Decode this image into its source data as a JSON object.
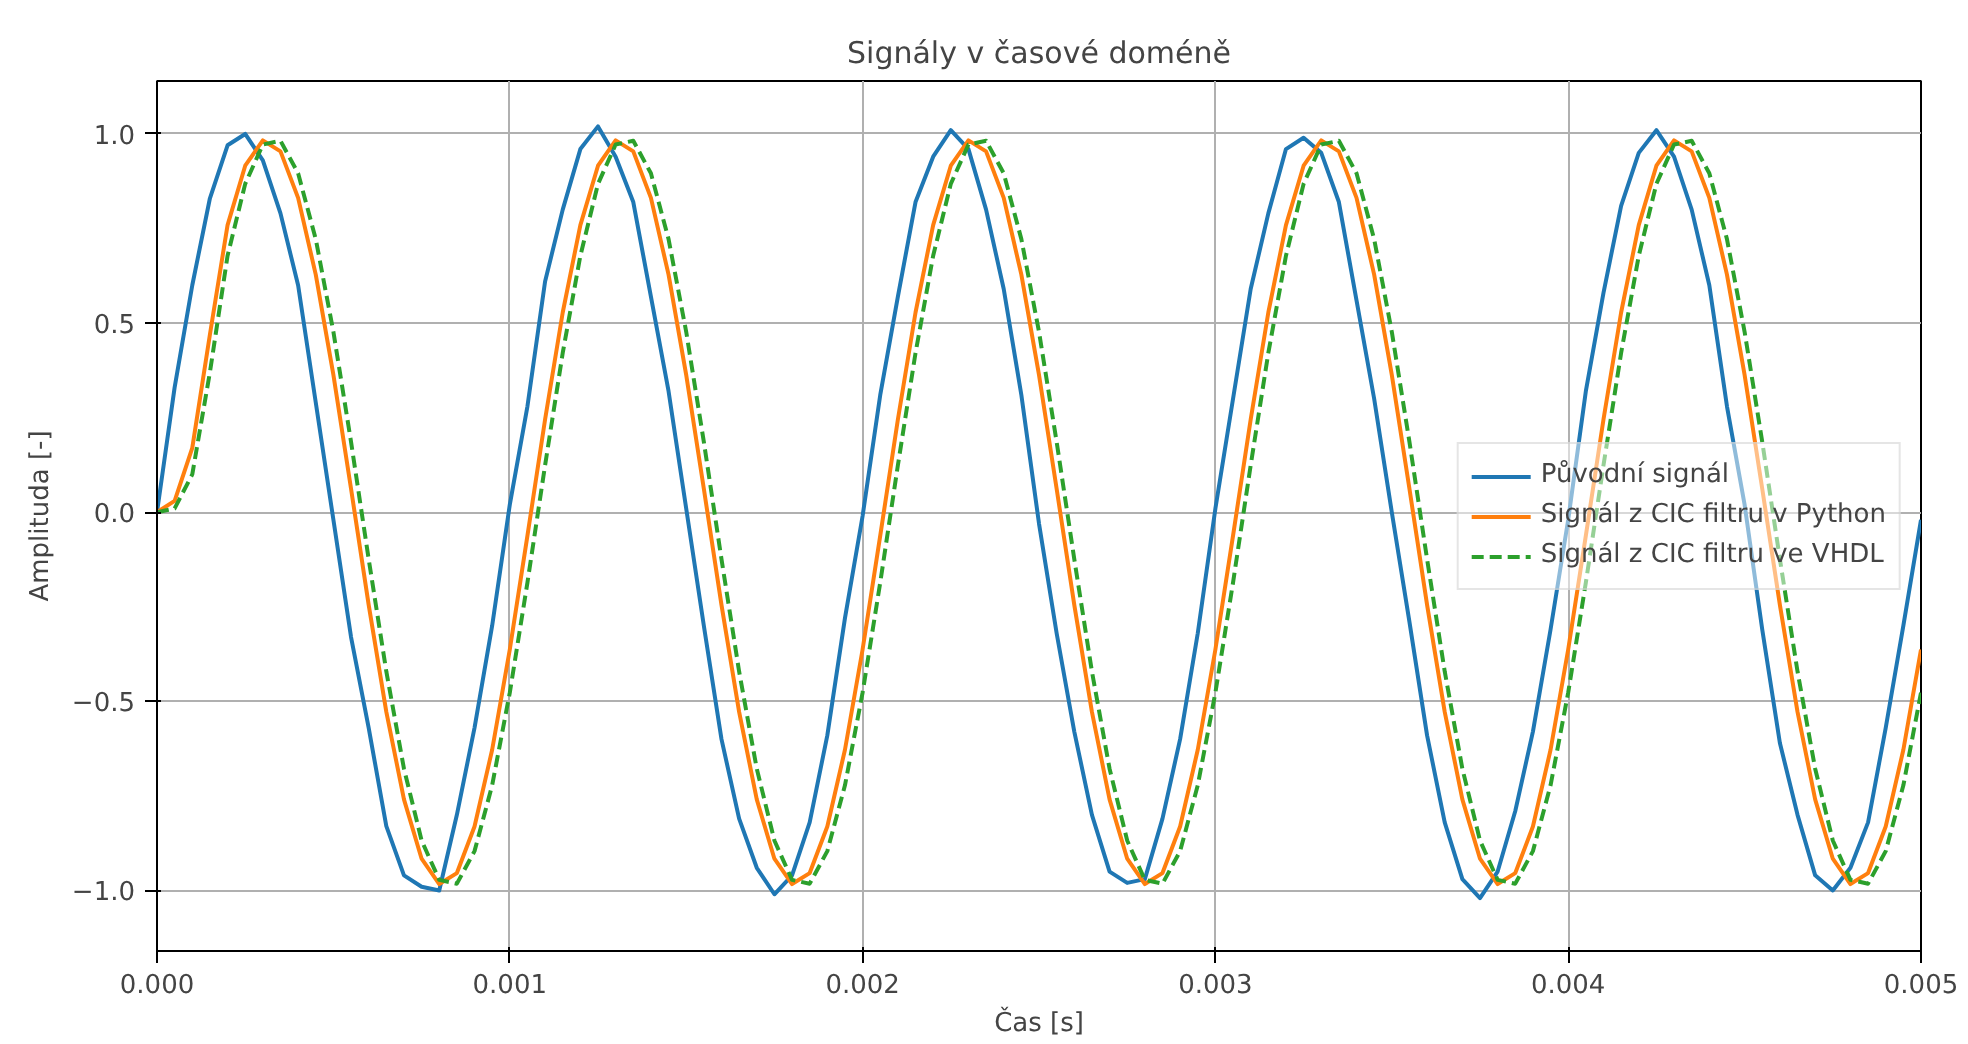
{
  "chart_data": {
    "type": "line",
    "title": "Signály v časové doméně",
    "xlabel": "Čas [s]",
    "ylabel": "Amplituda [-]",
    "x": [
      0,
      5e-05,
      0.0001,
      0.00015,
      0.0002,
      0.00025,
      0.0003,
      0.00035,
      0.0004,
      0.00045,
      0.0005,
      0.00055,
      0.0006,
      0.00065,
      0.0007,
      0.00075,
      0.0008,
      0.00085,
      0.0009,
      0.00095,
      0.001,
      0.00105,
      0.0011,
      0.00115,
      0.0012,
      0.00125,
      0.0013,
      0.00135,
      0.0014,
      0.00145,
      0.0015,
      0.00155,
      0.0016,
      0.00165,
      0.0017,
      0.00175,
      0.0018,
      0.00185,
      0.0019,
      0.00195,
      0.002,
      0.00205,
      0.0021,
      0.00215,
      0.0022,
      0.00225,
      0.0023,
      0.00235,
      0.0024,
      0.00245,
      0.0025,
      0.00255,
      0.0026,
      0.00265,
      0.0027,
      0.00275,
      0.0028,
      0.00285,
      0.0029,
      0.00295,
      0.003,
      0.00305,
      0.0031,
      0.00315,
      0.0032,
      0.00325,
      0.0033,
      0.00335,
      0.0034,
      0.00345,
      0.0035,
      0.00355,
      0.0036,
      0.00365,
      0.0037,
      0.00375,
      0.0038,
      0.00385,
      0.0039,
      0.00395,
      0.004,
      0.00405,
      0.0041,
      0.00415,
      0.0042,
      0.00425,
      0.0043,
      0.00435,
      0.0044,
      0.00445,
      0.0045,
      0.00455,
      0.0046,
      0.00465,
      0.0047,
      0.00475,
      0.0048,
      0.00485,
      0.0049,
      0.00495,
      0.005
    ],
    "series": [
      {
        "name": "Původní signál",
        "color": "#1f77b4",
        "values": [
          0,
          0.33,
          0.6,
          0.83,
          0.97,
          1.0,
          0.93,
          0.79,
          0.6,
          0.29,
          -0.02,
          -0.33,
          -0.57,
          -0.83,
          -0.96,
          -0.99,
          -1.0,
          -0.8,
          -0.57,
          -0.3,
          0.02,
          0.28,
          0.61,
          0.8,
          0.96,
          1.02,
          0.94,
          0.82,
          0.57,
          0.32,
          0.01,
          -0.3,
          -0.6,
          -0.81,
          -0.94,
          -1.01,
          -0.96,
          -0.82,
          -0.59,
          -0.28,
          -0.01,
          0.31,
          0.57,
          0.82,
          0.94,
          1.01,
          0.96,
          0.8,
          0.59,
          0.31,
          -0.03,
          -0.32,
          -0.58,
          -0.8,
          -0.95,
          -0.98,
          -0.97,
          -0.81,
          -0.6,
          -0.32,
          0.01,
          0.3,
          0.59,
          0.79,
          0.96,
          0.99,
          0.95,
          0.82,
          0.56,
          0.3,
          0,
          -0.29,
          -0.59,
          -0.82,
          -0.97,
          -1.02,
          -0.95,
          -0.79,
          -0.58,
          -0.31,
          -0.02,
          0.32,
          0.58,
          0.81,
          0.95,
          1.01,
          0.94,
          0.8,
          0.6,
          0.28,
          0.02,
          -0.31,
          -0.61,
          -0.8,
          -0.96,
          -1.0,
          -0.94,
          -0.82,
          -0.57,
          -0.3,
          -0.02
        ]
      },
      {
        "name": "Signál z CIC filtru v Python",
        "color": "#ff7f0e",
        "values": [
          0,
          0.03,
          0.17,
          0.47,
          0.759,
          0.916,
          0.983,
          0.954,
          0.831,
          0.628,
          0.363,
          0.062,
          -0.245,
          -0.528,
          -0.759,
          -0.916,
          -0.983,
          -0.954,
          -0.831,
          -0.628,
          -0.363,
          -0.062,
          0.245,
          0.528,
          0.759,
          0.916,
          0.983,
          0.954,
          0.831,
          0.628,
          0.363,
          0.062,
          -0.245,
          -0.528,
          -0.759,
          -0.916,
          -0.983,
          -0.954,
          -0.831,
          -0.628,
          -0.363,
          -0.062,
          0.245,
          0.528,
          0.759,
          0.916,
          0.983,
          0.954,
          0.831,
          0.628,
          0.363,
          0.062,
          -0.245,
          -0.528,
          -0.759,
          -0.916,
          -0.983,
          -0.954,
          -0.831,
          -0.628,
          -0.363,
          -0.062,
          0.245,
          0.528,
          0.759,
          0.916,
          0.983,
          0.954,
          0.831,
          0.628,
          0.363,
          0.062,
          -0.245,
          -0.528,
          -0.759,
          -0.916,
          -0.983,
          -0.954,
          -0.831,
          -0.628,
          -0.363,
          -0.062,
          0.245,
          0.528,
          0.759,
          0.916,
          0.983,
          0.954,
          0.831,
          0.628,
          0.363,
          0.062,
          -0.245,
          -0.528,
          -0.759,
          -0.916,
          -0.983,
          -0.954,
          -0.831,
          -0.628,
          -0.363
        ]
      },
      {
        "name": "Signál z CIC filtru ve VHDL",
        "color": "#2ca02c",
        "line_style": "dashed",
        "values": [
          0,
          0.01,
          0.1,
          0.37,
          0.678,
          0.868,
          0.972,
          0.982,
          0.896,
          0.722,
          0.477,
          0.186,
          -0.124,
          -0.421,
          -0.678,
          -0.868,
          -0.972,
          -0.982,
          -0.896,
          -0.722,
          -0.477,
          -0.186,
          0.124,
          0.421,
          0.678,
          0.868,
          0.972,
          0.982,
          0.896,
          0.722,
          0.477,
          0.186,
          -0.124,
          -0.421,
          -0.678,
          -0.868,
          -0.972,
          -0.982,
          -0.896,
          -0.722,
          -0.477,
          -0.186,
          0.124,
          0.421,
          0.678,
          0.868,
          0.972,
          0.982,
          0.896,
          0.722,
          0.477,
          0.186,
          -0.124,
          -0.421,
          -0.678,
          -0.868,
          -0.972,
          -0.982,
          -0.896,
          -0.722,
          -0.477,
          -0.186,
          0.124,
          0.421,
          0.678,
          0.868,
          0.972,
          0.982,
          0.896,
          0.722,
          0.477,
          0.186,
          -0.124,
          -0.421,
          -0.678,
          -0.868,
          -0.972,
          -0.982,
          -0.896,
          -0.722,
          -0.477,
          -0.186,
          0.124,
          0.421,
          0.678,
          0.868,
          0.972,
          0.982,
          0.896,
          0.722,
          0.477,
          0.186,
          -0.124,
          -0.421,
          -0.678,
          -0.868,
          -0.972,
          -0.982,
          -0.896,
          -0.722,
          -0.477
        ]
      }
    ],
    "xlim": [
      0,
      0.005
    ],
    "ylim": [
      -1.16,
      1.14
    ],
    "xticks": [
      {
        "value": 0,
        "label": "0.000"
      },
      {
        "value": 0.001,
        "label": "0.001"
      },
      {
        "value": 0.002,
        "label": "0.002"
      },
      {
        "value": 0.003,
        "label": "0.003"
      },
      {
        "value": 0.004,
        "label": "0.004"
      },
      {
        "value": 0.005,
        "label": "0.005"
      }
    ],
    "yticks": [
      {
        "value": -1,
        "label": "−1.0"
      },
      {
        "value": -0.5,
        "label": "−0.5"
      },
      {
        "value": 0,
        "label": "0.0"
      },
      {
        "value": 0.5,
        "label": "0.5"
      },
      {
        "value": 1,
        "label": "1.0"
      }
    ],
    "grid": true,
    "legend": "right",
    "line_style": "solid"
  }
}
